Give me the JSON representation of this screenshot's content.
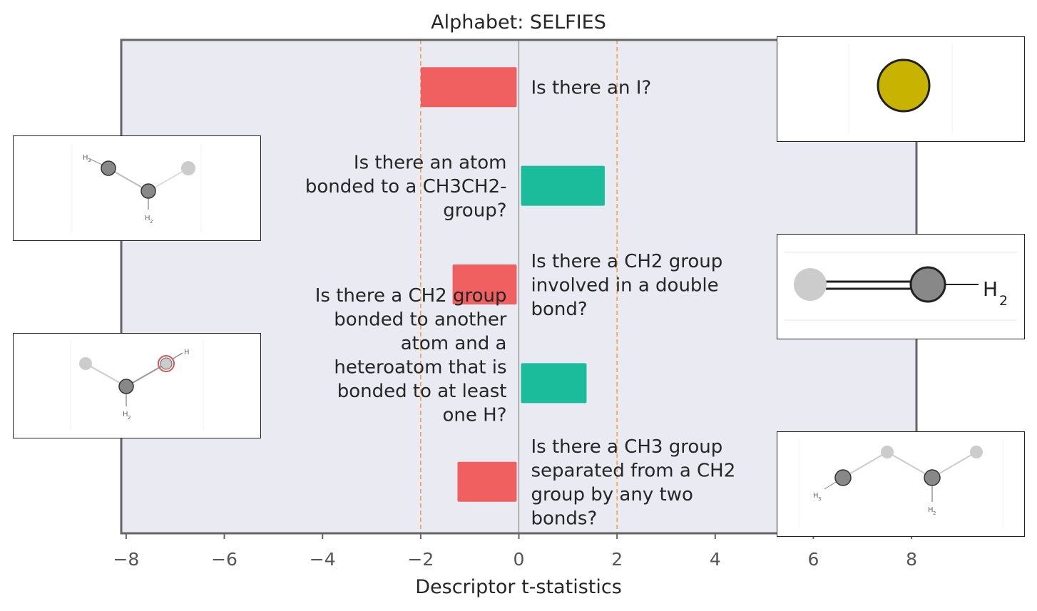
{
  "chart_data": {
    "type": "bar",
    "orientation": "horizontal",
    "title": "Alphabet: SELFIES",
    "xlabel": "Descriptor t-statistics",
    "ylabel": "",
    "xlim": [
      -8.1,
      8.1
    ],
    "xticks": [
      -8,
      -6,
      -4,
      -2,
      0,
      2,
      4,
      6,
      8
    ],
    "xtick_labels": [
      "−8",
      "−6",
      "−4",
      "−2",
      "0",
      "2",
      "4",
      "6",
      "8"
    ],
    "significance_lines": [
      -2,
      2
    ],
    "grid": false,
    "bars": [
      {
        "label": "Is there an I?",
        "value": -2.0,
        "color": "#f06060"
      },
      {
        "label": "Is there an atom bonded to a CH3CH2- group?",
        "value": 1.75,
        "color": "#1abc9c"
      },
      {
        "label": "Is there a CH2 group involved in a double bond?",
        "value": -1.35,
        "color": "#f06060"
      },
      {
        "label": "Is there a CH2 group bonded to another atom and a heteroatom that is bonded to at least one H?",
        "value": 1.38,
        "color": "#1abc9c"
      },
      {
        "label": "Is there a CH3 group separated from a CH2 group by any two bonds?",
        "value": -1.25,
        "color": "#f06060"
      }
    ],
    "label_lines": [
      [
        "Is there an I?"
      ],
      [
        "Is there an atom",
        "bonded to a CH3CH2-",
        "group?"
      ],
      [
        "Is there a CH2 group",
        "involved in a double",
        "bond?"
      ],
      [
        "Is there a CH2 group",
        "bonded to another",
        "atom and a",
        "heteroatom that is",
        "bonded to at least",
        "one H?"
      ],
      [
        "Is there a CH3 group",
        "separated from a CH2",
        "group by any two",
        "bonds?"
      ]
    ],
    "insets": [
      {
        "for_bar": 0,
        "side": "right",
        "depicts": "iodine atom",
        "subscript_labels": []
      },
      {
        "for_bar": 1,
        "side": "left",
        "depicts": "ethyl fragment",
        "subscript_labels": [
          "H",
          "3",
          "H",
          "2"
        ]
      },
      {
        "for_bar": 2,
        "side": "right",
        "depicts": "CH2 double bond",
        "subscript_labels": [
          "H",
          "2"
        ]
      },
      {
        "for_bar": 3,
        "side": "left",
        "depicts": "CH2 bonded to heteroatom-H",
        "subscript_labels": [
          "H",
          "2",
          "H"
        ]
      },
      {
        "for_bar": 4,
        "side": "right",
        "depicts": "CH3 two bonds from CH2",
        "subscript_labels": [
          "H",
          "3",
          "H",
          "2"
        ]
      }
    ]
  },
  "colors": {
    "plot_background": "#e9eaf2",
    "frame": "#666666",
    "negative_bar": "#f06060",
    "positive_bar": "#1abc9c",
    "threshold_line": "#f5a442",
    "zero_line": "#8a8a8a",
    "atom_dark": "#888888",
    "atom_light": "#cccccc",
    "iodine": "#c8b400"
  }
}
